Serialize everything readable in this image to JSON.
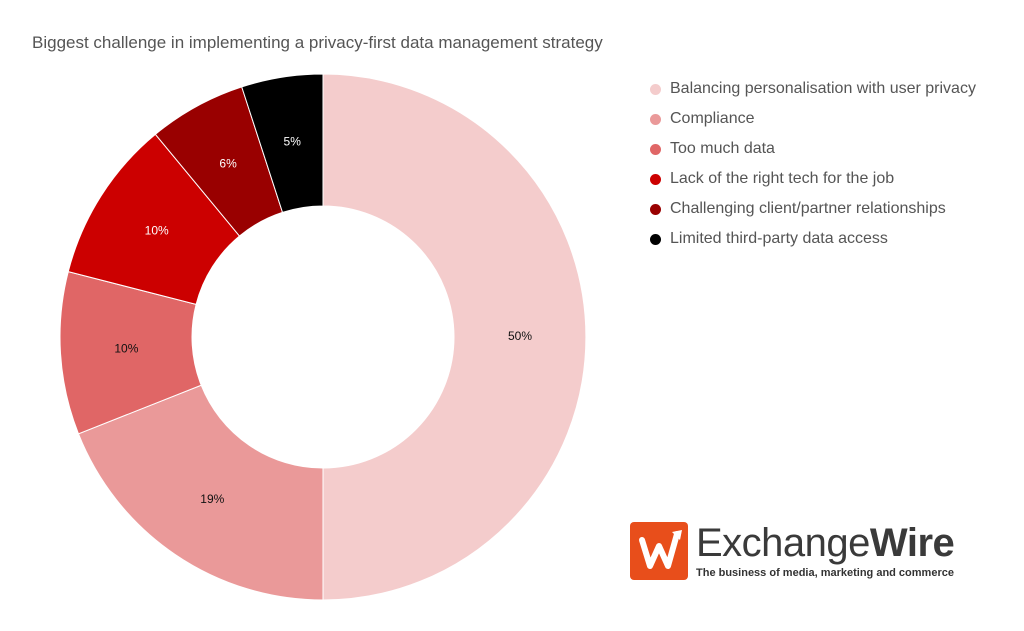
{
  "chart_data": {
    "type": "pie",
    "subtype": "donut",
    "title": "Biggest challenge in implementing a privacy-first data management strategy",
    "categories": [
      "Balancing personalisation with user privacy",
      "Compliance",
      "Too much data",
      "Lack of the right tech for the job",
      "Challenging client/partner relationships",
      "Limited third-party data access"
    ],
    "values": [
      50,
      19,
      10,
      10,
      6,
      5
    ],
    "data_labels": [
      "50%",
      "19%",
      "10%",
      "10%",
      "6%",
      "5%"
    ],
    "colors": [
      "#f4cccc",
      "#ea9999",
      "#e06666",
      "#cc0000",
      "#990000",
      "#000000"
    ],
    "legend_position": "right",
    "start_angle": "top, clockwise"
  },
  "branding": {
    "name_part1": "Exchange",
    "name_part2": "Wire",
    "tagline": "The business of media, marketing and commerce",
    "color": "#e84e1b"
  }
}
